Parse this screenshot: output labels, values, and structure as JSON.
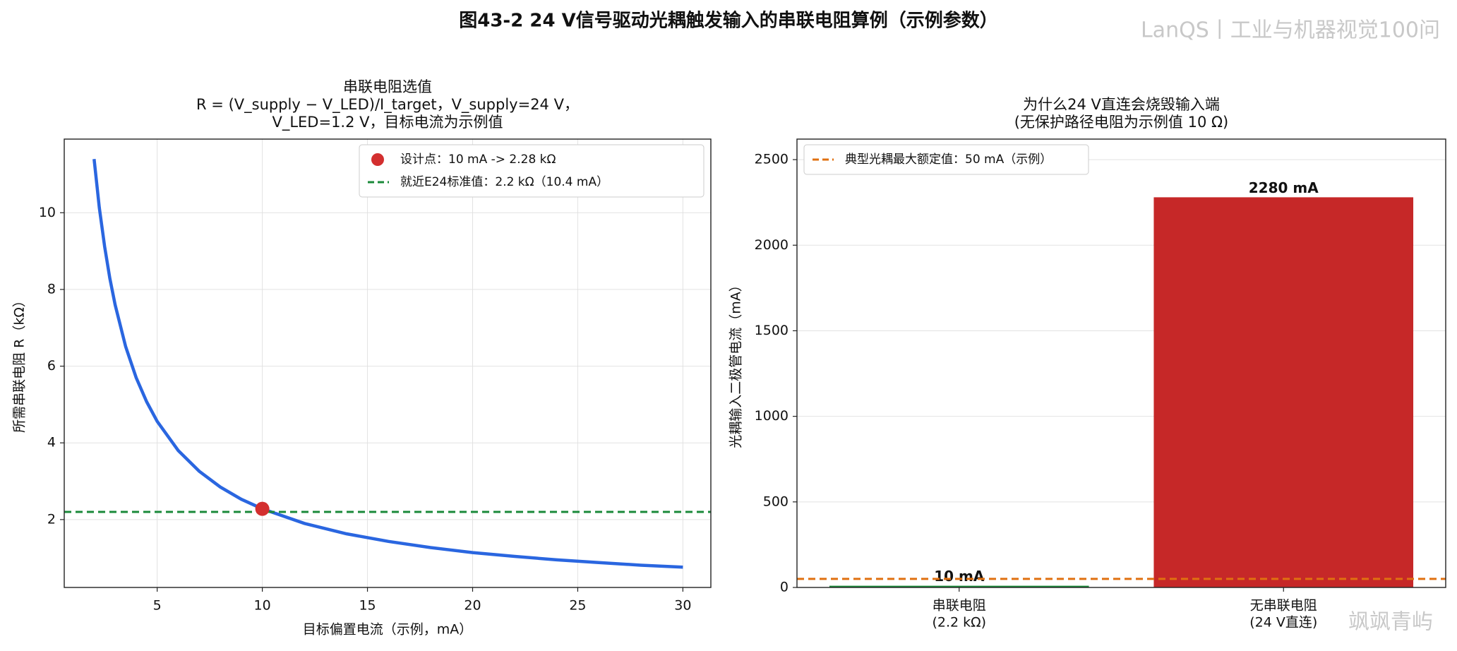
{
  "title": "图43-2 24 V信号驱动光耦触发输入的串联电阻算例（示例参数）",
  "watermark": "LanQS丨工业与机器视觉100问",
  "watermark_bottom": "飒飒青屿",
  "chart_data": [
    {
      "type": "line",
      "title": [
        "串联电阻选值",
        "R = (V_supply − V_LED)/I_target，V_supply=24 V，",
        "V_LED=1.2 V，目标电流为示例值"
      ],
      "x_label": "目标偏置电流（示例，mA）",
      "y_label": "所需串联电阻 R（kΩ）",
      "x": [
        2,
        2.25,
        2.5,
        2.75,
        3,
        3.5,
        4,
        4.5,
        5,
        6,
        7,
        8,
        9,
        10,
        12,
        14,
        16,
        18,
        20,
        22,
        24,
        26,
        28,
        30
      ],
      "values": [
        11.4,
        10.13,
        9.12,
        8.29,
        7.6,
        6.51,
        5.7,
        5.07,
        4.56,
        3.8,
        3.26,
        2.85,
        2.53,
        2.28,
        1.9,
        1.63,
        1.43,
        1.27,
        1.14,
        1.04,
        0.95,
        0.88,
        0.81,
        0.76
      ],
      "color": "#2a66e0",
      "marker": {
        "name": "设计点：10 mA -> 2.28 kΩ",
        "x": 10,
        "y": 2.28,
        "color": "#d32f2f"
      },
      "hline": {
        "name": "就近E24标准值：2.2 kΩ（10.4 mA）",
        "value": 2.2,
        "color": "#1a8a3a"
      },
      "xlim": [
        0.58,
        31.33
      ],
      "xticks": [
        5,
        10,
        15,
        20,
        25,
        30
      ],
      "ylim": [
        0.23,
        11.92
      ],
      "yticks": [
        2,
        4,
        6,
        8,
        10
      ],
      "grid": true,
      "legend": "upper right"
    },
    {
      "type": "bar",
      "title": [
        "为什么24 V直连会烧毁输入端",
        "(无保护路径电阻为示例值 10 Ω)"
      ],
      "y_label": "光耦输入二极管电流（mA）",
      "categories": [
        [
          "串联电阻",
          "(2.2 kΩ)"
        ],
        [
          "无串联电阻",
          "(24 V直连)"
        ]
      ],
      "values": [
        10,
        2280
      ],
      "value_labels": [
        "10 mA",
        "2280 mA"
      ],
      "colors": [
        "#1a8a3a",
        "#c62828"
      ],
      "hline": {
        "name": "典型光耦最大额定值：50 mA（示例）",
        "value": 50,
        "color": "#e07010"
      },
      "ylim": [
        0,
        2620
      ],
      "yticks": [
        0,
        500,
        1000,
        1500,
        2000,
        2500
      ],
      "grid": true,
      "legend": "upper left"
    }
  ]
}
